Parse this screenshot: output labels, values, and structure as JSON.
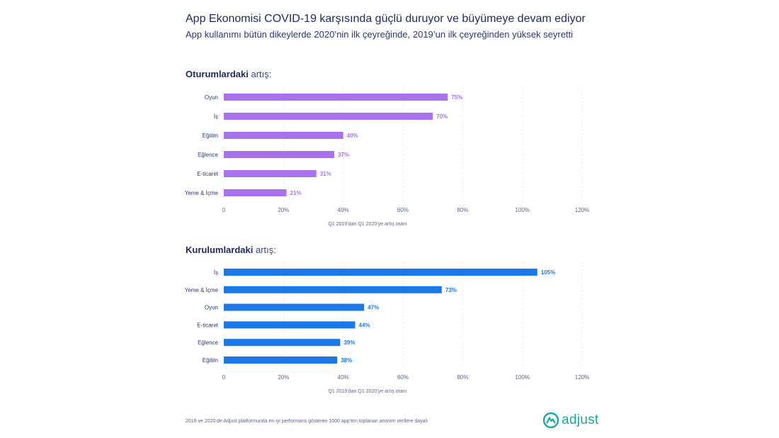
{
  "header": {
    "title": "App Ekonomisi COVID-19 karşısında güçlü duruyor ve büyümeye devam ediyor",
    "subtitle": "App kullanımı bütün dikeylerde 2020’nin ilk çeyreğinde, 2019’un ilk çeyreğinden yüksek seyretti"
  },
  "sections": {
    "sessions": {
      "title_bold": "Oturumlardaki",
      "title_rest": " artış:"
    },
    "installs": {
      "title_bold": "Kurulumlardaki",
      "title_rest": " artış:"
    }
  },
  "footnote": "2019 ve 2020’de Adjust platformunda en iyi performans gösteren 1000 app’ten toplanan anonim verilere dayalı",
  "logo": {
    "text": "adjust",
    "color": "#1aa7a0"
  },
  "chart_data": [
    {
      "type": "bar",
      "orientation": "horizontal",
      "categories": [
        "Oyun",
        "İş",
        "Eğitim",
        "Eğlence",
        "E-ticaret",
        "Yeme & İçme"
      ],
      "values": [
        75,
        70,
        40,
        37,
        31,
        21
      ],
      "data_labels": [
        "75%",
        "70%",
        "40%",
        "37%",
        "31%",
        "21%"
      ],
      "xlabel": "Q1 2019’dan Q1 2020’ye artış oranı",
      "xlim": [
        0,
        120
      ],
      "xticks": [
        0,
        20,
        40,
        60,
        80,
        100,
        120
      ],
      "xtick_labels": [
        "0",
        "20%",
        "40%",
        "60%",
        "80%",
        "100%",
        "120%"
      ],
      "color": "#a972ec",
      "grid": "vertical dashed"
    },
    {
      "type": "bar",
      "orientation": "horizontal",
      "categories": [
        "İş",
        "Yeme & İçme",
        "Oyun",
        "E-ticaret",
        "Eğlence",
        "Eğitim"
      ],
      "values": [
        105,
        73,
        47,
        44,
        39,
        38
      ],
      "data_labels": [
        "105%",
        "73%",
        "47%",
        "44%",
        "39%",
        "38%"
      ],
      "xlabel": "Q1 2019’dan Q1 2020’ye artış oranı",
      "xlim": [
        0,
        120
      ],
      "xticks": [
        0,
        20,
        40,
        60,
        80,
        100,
        120
      ],
      "xtick_labels": [
        "0",
        "20%",
        "40%",
        "60%",
        "80%",
        "100%",
        "120%"
      ],
      "color": "#1a78e8",
      "grid": "vertical dashed"
    }
  ]
}
